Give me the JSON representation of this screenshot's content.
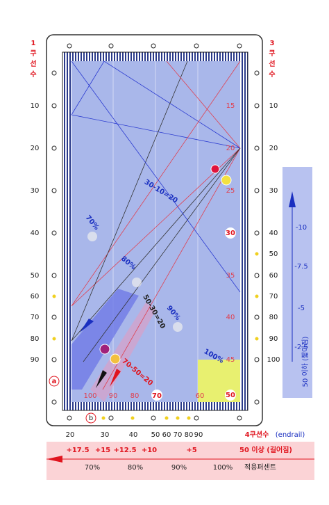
{
  "left_label": [
    "1",
    "쿠",
    "선",
    "수"
  ],
  "right_label": [
    "3",
    "쿠",
    "선",
    "수"
  ],
  "left_scale": [
    "10",
    "20",
    "30",
    "40",
    "50",
    "60",
    "70",
    "80",
    "90"
  ],
  "right_scale": [
    "10",
    "20",
    "30",
    "40",
    "50",
    "60",
    "70",
    "80",
    "90",
    "100"
  ],
  "inner_right": [
    "15",
    "20",
    "25",
    "30",
    "35",
    "40",
    "45",
    "50"
  ],
  "inner_bottom": [
    "100",
    "90",
    "80",
    "70",
    "60"
  ],
  "markers": {
    "a": "a",
    "b": "b"
  },
  "annotations": {
    "rule_1": "30-10=20",
    "rule_2": "50-30=20",
    "rule_3": "70-50=20",
    "p70": "70%",
    "p80": "80%",
    "p90": "90%",
    "p100": "100%"
  },
  "correction_panel": {
    "ticks": [
      "-10",
      "-7.5",
      "-5",
      "-2.5"
    ],
    "caption": "50 이하 (짧아짐)"
  },
  "bottom": {
    "title": "4쿠션수",
    "subtitle": "(endrail)",
    "scale": [
      "20",
      "30",
      "40",
      "50",
      "60",
      "70",
      "80",
      "90"
    ],
    "corrections": [
      "+17.5",
      "+15",
      "+12.5",
      "+10",
      "+5"
    ],
    "long_caption": "50 이상 (길어짐)",
    "percents": [
      "70%",
      "80%",
      "90%",
      "100%"
    ],
    "percent_caption": "적용퍼센트"
  }
}
